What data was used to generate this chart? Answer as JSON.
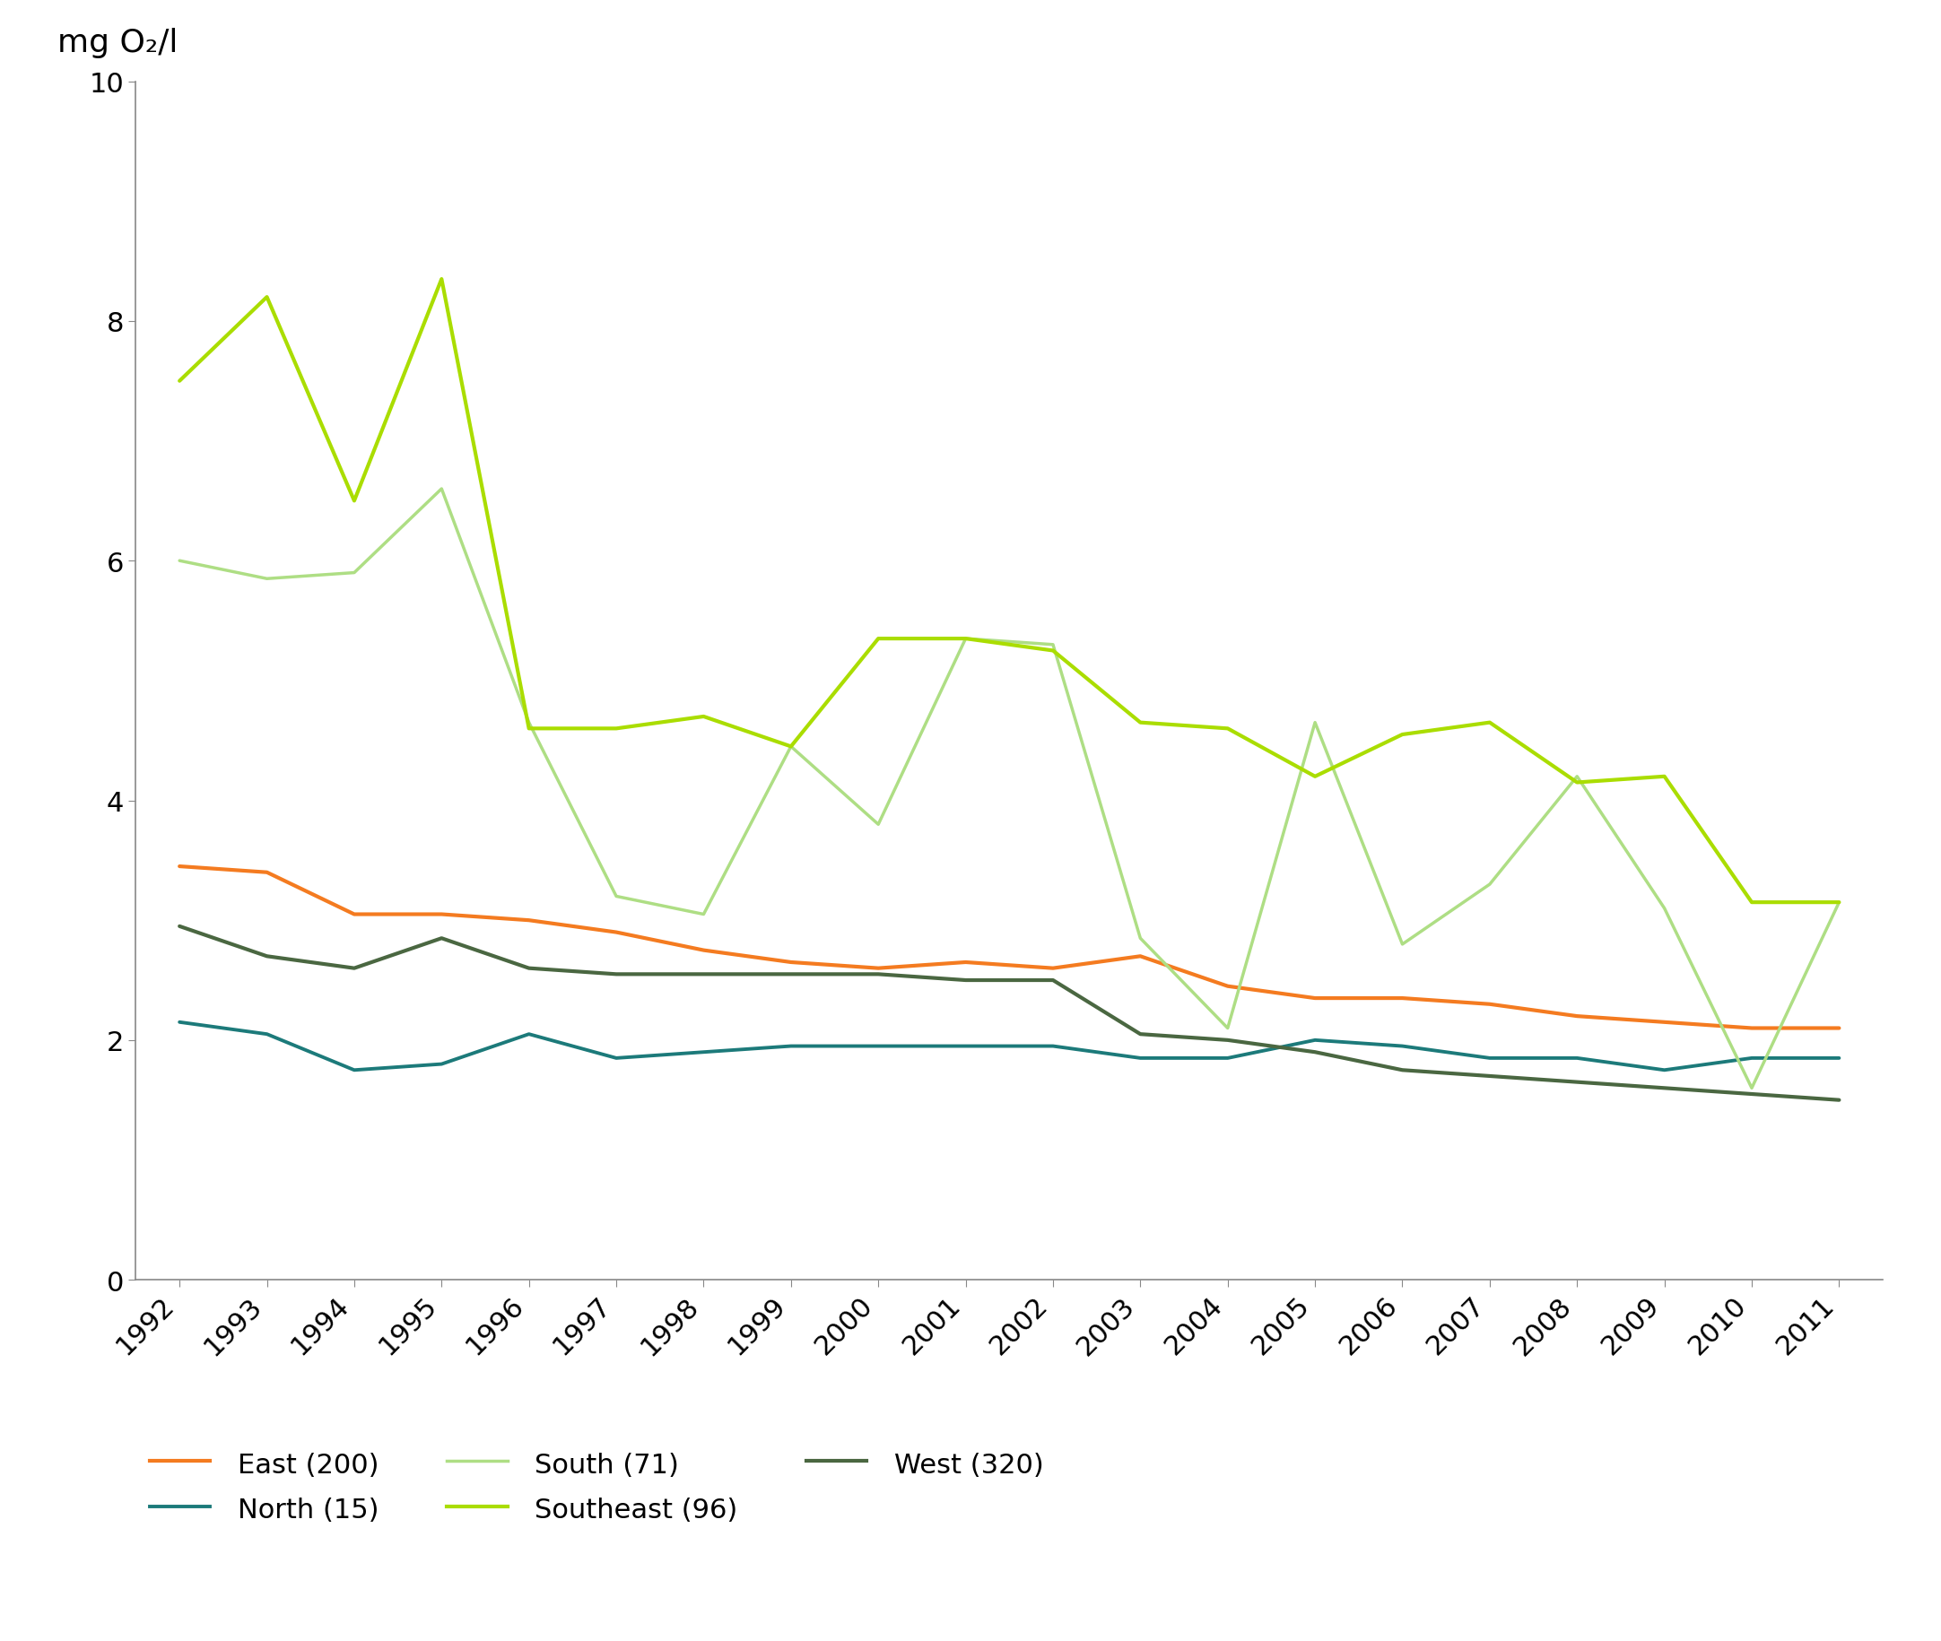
{
  "years": [
    1992,
    1993,
    1994,
    1995,
    1996,
    1997,
    1998,
    1999,
    2000,
    2001,
    2002,
    2003,
    2004,
    2005,
    2006,
    2007,
    2008,
    2009,
    2010,
    2011
  ],
  "series": [
    {
      "name": "East (200)",
      "color": "#F47B20",
      "linewidth": 3.0,
      "values": [
        3.45,
        3.4,
        3.05,
        3.05,
        3.0,
        2.9,
        2.75,
        2.65,
        2.6,
        2.65,
        2.6,
        2.7,
        2.45,
        2.35,
        2.35,
        2.3,
        2.2,
        2.15,
        2.1,
        2.1
      ]
    },
    {
      "name": "North (15)",
      "color": "#1C7A7A",
      "linewidth": 2.8,
      "values": [
        2.15,
        2.05,
        1.75,
        1.8,
        2.05,
        1.85,
        1.9,
        1.95,
        1.95,
        1.95,
        1.95,
        1.85,
        1.85,
        2.0,
        1.95,
        1.85,
        1.85,
        1.75,
        1.85,
        1.85
      ]
    },
    {
      "name": "South (71)",
      "color": "#AEDE84",
      "linewidth": 2.5,
      "values": [
        6.0,
        5.85,
        5.9,
        6.6,
        4.65,
        3.2,
        3.05,
        4.45,
        3.8,
        5.35,
        5.3,
        2.85,
        2.1,
        4.65,
        2.8,
        3.3,
        4.2,
        3.1,
        1.6,
        3.15
      ]
    },
    {
      "name": "Southeast (96)",
      "color": "#AADD00",
      "linewidth": 3.0,
      "values": [
        7.5,
        8.2,
        6.5,
        8.35,
        4.6,
        4.6,
        4.7,
        4.45,
        5.35,
        5.35,
        5.25,
        4.65,
        4.6,
        4.2,
        4.55,
        4.65,
        4.15,
        4.2,
        3.15,
        3.15
      ]
    },
    {
      "name": "West (320)",
      "color": "#4A6741",
      "linewidth": 3.0,
      "values": [
        2.95,
        2.7,
        2.6,
        2.85,
        2.6,
        2.55,
        2.55,
        2.55,
        2.55,
        2.5,
        2.5,
        2.05,
        2.0,
        1.9,
        1.75,
        1.7,
        1.65,
        1.6,
        1.55,
        1.5
      ]
    }
  ],
  "ylim": [
    0,
    10
  ],
  "yticks": [
    0,
    2,
    4,
    6,
    8,
    10
  ],
  "ylabel": "mg O₂/l",
  "ylabel_fontsize": 26,
  "tick_fontsize": 22,
  "legend_fontsize": 22,
  "background_color": "#ffffff",
  "legend_row1": [
    "East (200)",
    "North (15)",
    "South (71)"
  ],
  "legend_row2": [
    "Southeast (96)",
    "West (320)"
  ]
}
